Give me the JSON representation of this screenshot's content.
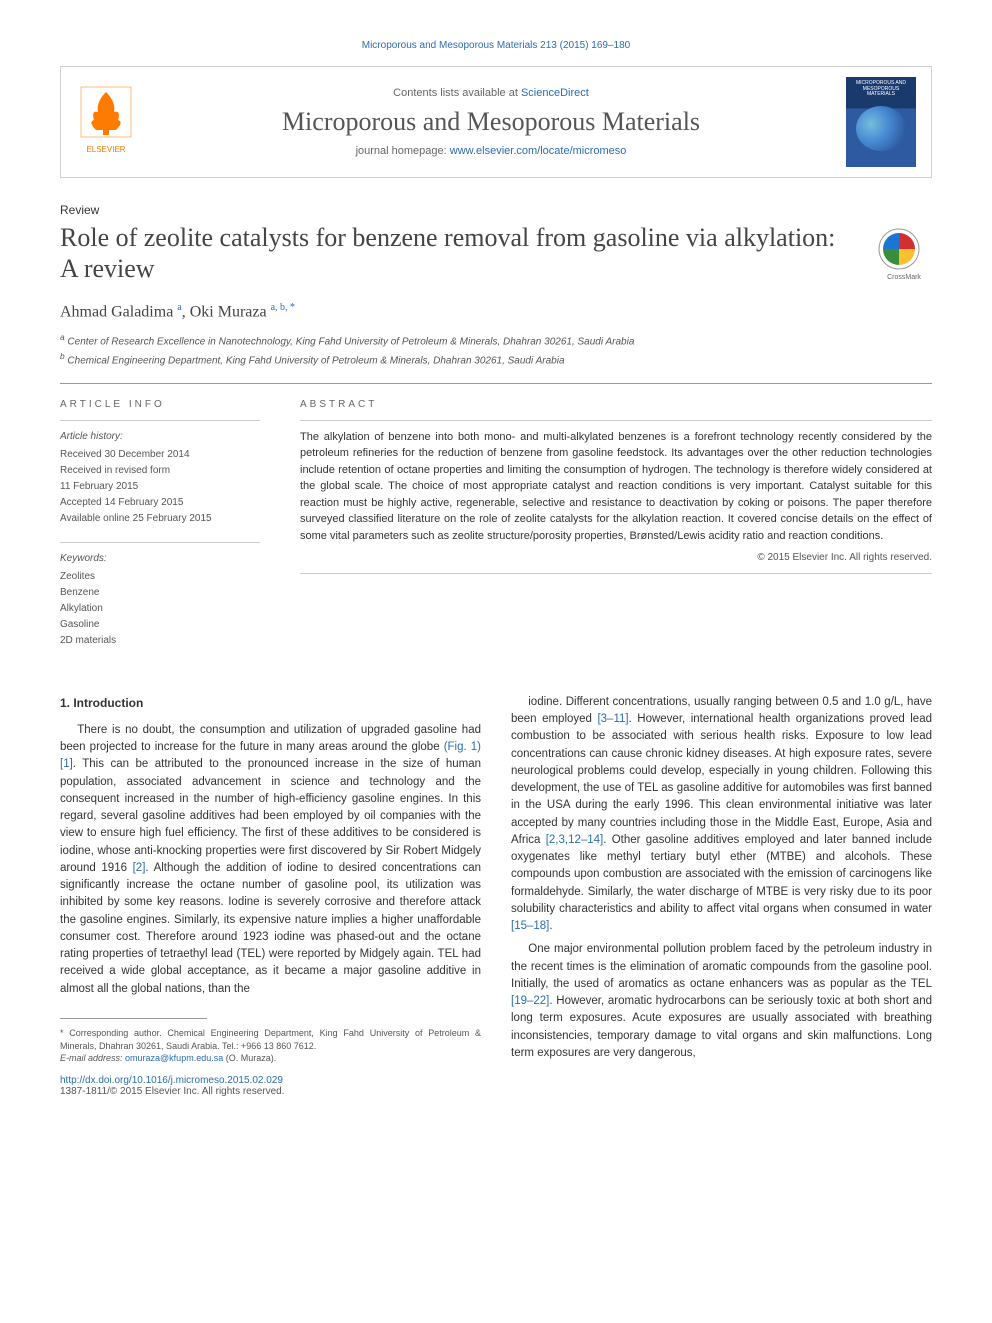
{
  "header": {
    "citation": "Microporous and Mesoporous Materials 213 (2015) 169–180",
    "contents_text": "Contents lists available at ",
    "contents_link": "ScienceDirect",
    "journal_name": "Microporous and Mesoporous Materials",
    "homepage_text": "journal homepage: ",
    "homepage_url": "www.elsevier.com/locate/micromeso",
    "publisher_logo_text": "ELSEVIER",
    "cover_title": "MICROPOROUS AND MESOPOROUS MATERIALS"
  },
  "article": {
    "type": "Review",
    "title": "Role of zeolite catalysts for benzene removal from gasoline via alkylation: A review",
    "crossmark_label": "CrossMark",
    "authors_html": "Ahmad Galadima <sup>a</sup>, Oki Muraza <sup>a, b, *</sup>",
    "affiliations": {
      "a": "Center of Research Excellence in Nanotechnology, King Fahd University of Petroleum & Minerals, Dhahran 30261, Saudi Arabia",
      "b": "Chemical Engineering Department, King Fahd University of Petroleum & Minerals, Dhahran 30261, Saudi Arabia"
    }
  },
  "article_info": {
    "label": "ARTICLE INFO",
    "history_label": "Article history:",
    "history": [
      "Received 30 December 2014",
      "Received in revised form",
      "11 February 2015",
      "Accepted 14 February 2015",
      "Available online 25 February 2015"
    ],
    "keywords_label": "Keywords:",
    "keywords": [
      "Zeolites",
      "Benzene",
      "Alkylation",
      "Gasoline",
      "2D materials"
    ]
  },
  "abstract": {
    "label": "ABSTRACT",
    "text": "The alkylation of benzene into both mono- and multi-alkylated benzenes is a forefront technology recently considered by the petroleum refineries for the reduction of benzene from gasoline feedstock. Its advantages over the other reduction technologies include retention of octane properties and limiting the consumption of hydrogen. The technology is therefore widely considered at the global scale. The choice of most appropriate catalyst and reaction conditions is very important. Catalyst suitable for this reaction must be highly active, regenerable, selective and resistance to deactivation by coking or poisons. The paper therefore surveyed classified literature on the role of zeolite catalysts for the alkylation reaction. It covered concise details on the effect of some vital parameters such as zeolite structure/porosity properties, Brønsted/Lewis acidity ratio and reaction conditions.",
    "copyright": "© 2015 Elsevier Inc. All rights reserved."
  },
  "body": {
    "section1_heading": "1. Introduction",
    "col1_p1": "There is no doubt, the consumption and utilization of upgraded gasoline had been projected to increase for the future in many areas around the globe (Fig. 1) [1]. This can be attributed to the pronounced increase in the size of human population, associated advancement in science and technology and the consequent increased in the number of high-efficiency gasoline engines. In this regard, several gasoline additives had been employed by oil companies with the view to ensure high fuel efficiency. The first of these additives to be considered is iodine, whose anti-knocking properties were first discovered by Sir Robert Midgely around 1916 [2]. Although the addition of iodine to desired concentrations can significantly increase the octane number of gasoline pool, its utilization was inhibited by some key reasons. Iodine is severely corrosive and therefore attack the gasoline engines. Similarly, its expensive nature implies a higher unaffordable consumer cost. Therefore around 1923 iodine was phased-out and the octane rating properties of tetraethyl lead (TEL) were reported by Midgely again. TEL had received a wide global acceptance, as it became a major gasoline additive in almost all the global nations, than the",
    "col2_p1": "iodine. Different concentrations, usually ranging between 0.5 and 1.0 g/L, have been employed [3–11]. However, international health organizations proved lead combustion to be associated with serious health risks. Exposure to low lead concentrations can cause chronic kidney diseases. At high exposure rates, severe neurological problems could develop, especially in young children. Following this development, the use of TEL as gasoline additive for automobiles was first banned in the USA during the early 1996. This clean environmental initiative was later accepted by many countries including those in the Middle East, Europe, Asia and Africa [2,3,12–14]. Other gasoline additives employed and later banned include oxygenates like methyl tertiary butyl ether (MTBE) and alcohols. These compounds upon combustion are associated with the emission of carcinogens like formaldehyde. Similarly, the water discharge of MTBE is very risky due to its poor solubility characteristics and ability to affect vital organs when consumed in water [15–18].",
    "col2_p2": "One major environmental pollution problem faced by the petroleum industry in the recent times is the elimination of aromatic compounds from the gasoline pool. Initially, the used of aromatics as octane enhancers was as popular as the TEL [19–22]. However, aromatic hydrocarbons can be seriously toxic at both short and long term exposures. Acute exposures are usually associated with breathing inconsistencies, temporary damage to vital organs and skin malfunctions. Long term exposures are very dangerous,"
  },
  "footer": {
    "corr_label": "* Corresponding author. Chemical Engineering Department, King Fahd University of Petroleum & Minerals, Dhahran 30261, Saudi Arabia. Tel.: +966 13 860 7612.",
    "email_label": "E-mail address: ",
    "email": "omuraza@kfupm.edu.sa",
    "email_author": " (O. Muraza).",
    "doi": "http://dx.doi.org/10.1016/j.micromeso.2015.02.029",
    "issn": "1387-1811/© 2015 Elsevier Inc. All rights reserved."
  },
  "colors": {
    "link": "#2b6cb0",
    "text": "#333333",
    "muted": "#666666",
    "elsevier_orange": "#ff7a00",
    "border": "#d0d0d0"
  },
  "typography": {
    "body_fontsize_pt": 11.5,
    "title_fontsize_pt": 26,
    "journal_fontsize_pt": 26,
    "meta_fontsize_pt": 10,
    "abstract_fontsize_pt": 11
  }
}
